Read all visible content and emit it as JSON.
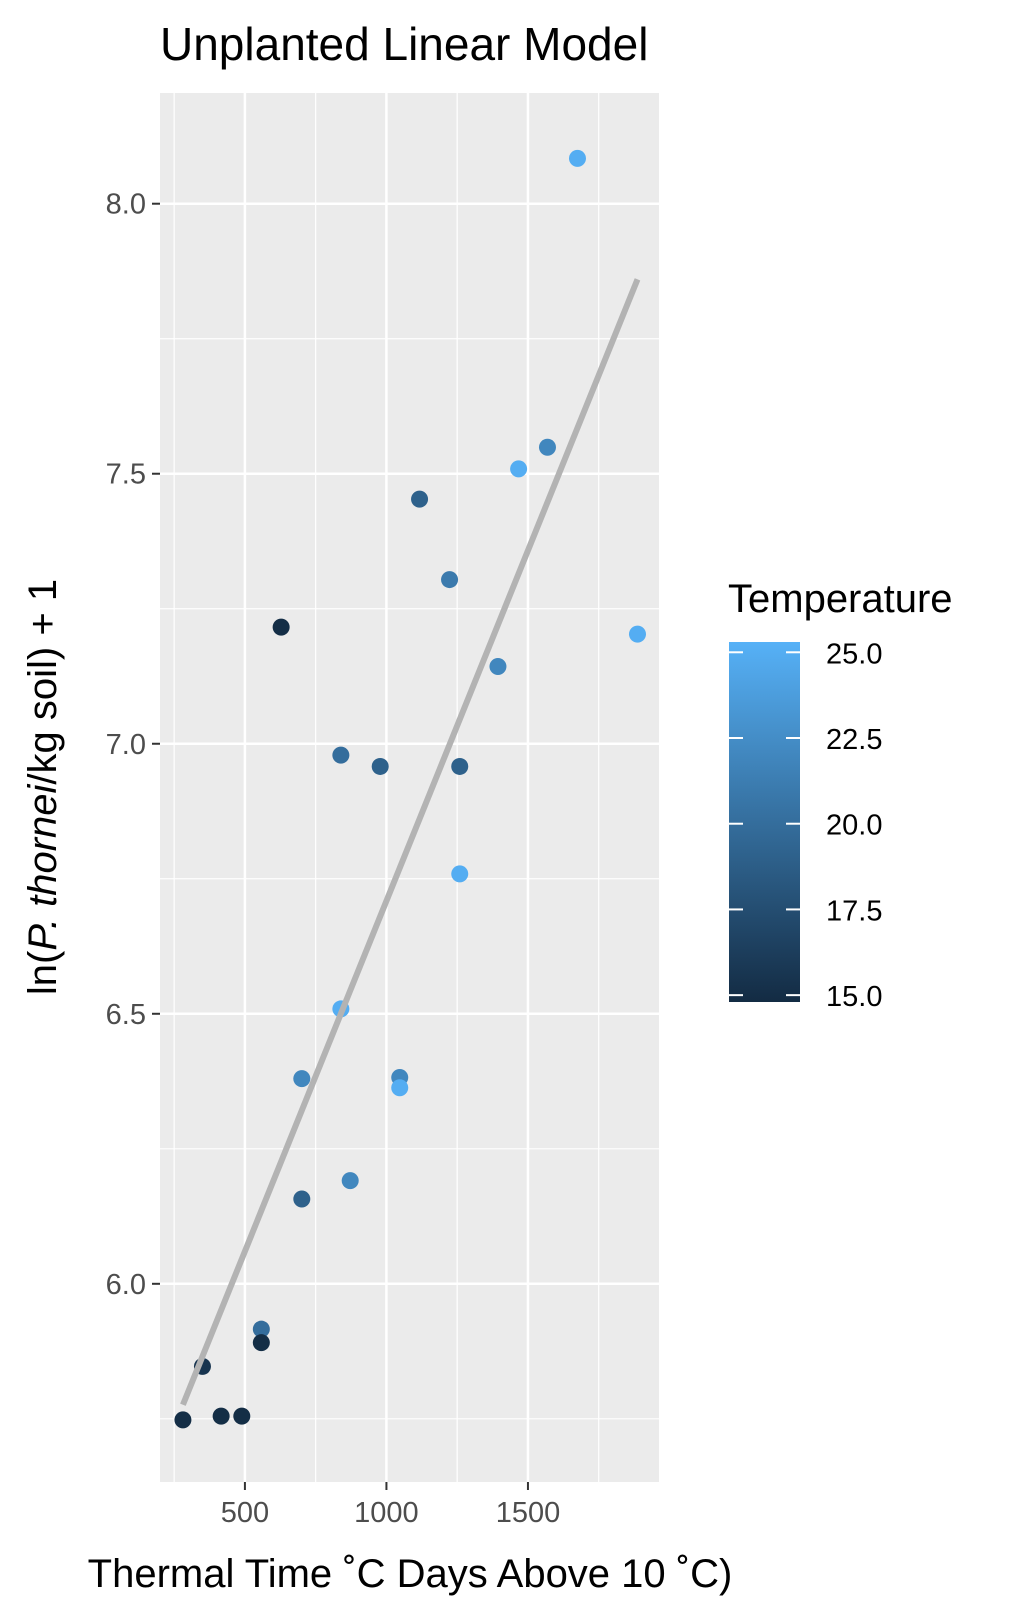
{
  "chart_data": {
    "type": "scatter",
    "title": "Unplanted Linear Model",
    "x_label": "Thermal Time ˚C Days Above 10 ˚C)",
    "y_label": {
      "prefix": "ln(",
      "italic": "P. thornei",
      "suffix": "/kg soil) + 1"
    },
    "legend_title": "Temperature",
    "x": [
      1675,
      1569,
      1467,
      1117,
      1223,
      628,
      1887,
      1394,
      839,
      978,
      1259,
      1259,
      839,
      701,
      1047,
      1047,
      872,
      701,
      558,
      558,
      350,
      416,
      489,
      281
    ],
    "y": [
      8.084,
      7.549,
      7.509,
      7.453,
      7.304,
      7.216,
      7.203,
      7.143,
      6.979,
      6.958,
      6.958,
      6.759,
      6.509,
      6.38,
      6.382,
      6.363,
      6.191,
      6.157,
      5.916,
      5.891,
      5.847,
      5.755,
      5.755,
      5.748
    ],
    "temperature": [
      25,
      22,
      25,
      19,
      21,
      15,
      25,
      22,
      20,
      19,
      19,
      25,
      25,
      22,
      22,
      25,
      22,
      19,
      20,
      15,
      15.5,
      15,
      15,
      15
    ],
    "fit": {
      "color": "#b3b3b3",
      "x": [
        281,
        1887
      ],
      "y": [
        5.776,
        7.86
      ]
    },
    "color_scale": {
      "low": "#132B43",
      "high": "#56B1F7"
    },
    "clim": [
      14.8,
      25.3
    ],
    "cticks": [
      {
        "value": 15,
        "label": "15.0"
      },
      17.5,
      {
        "value": 20,
        "label": "20.0"
      },
      22.5,
      {
        "value": 25,
        "label": "25.0"
      }
    ],
    "xlim": [
      200,
      1963
    ],
    "ylim": [
      5.633,
      8.205
    ],
    "xticks": [
      500,
      1000,
      1500
    ],
    "yticks": [
      {
        "value": 6,
        "label": "6.0"
      },
      6.5,
      {
        "value": 7,
        "label": "7.0"
      },
      7.5,
      {
        "value": 8,
        "label": "8.0"
      }
    ],
    "x_minor_grid": [
      250,
      750,
      1250,
      1750
    ],
    "y_minor_grid": [
      5.75,
      6.25,
      6.75,
      7.25,
      7.75
    ],
    "grid": true
  }
}
